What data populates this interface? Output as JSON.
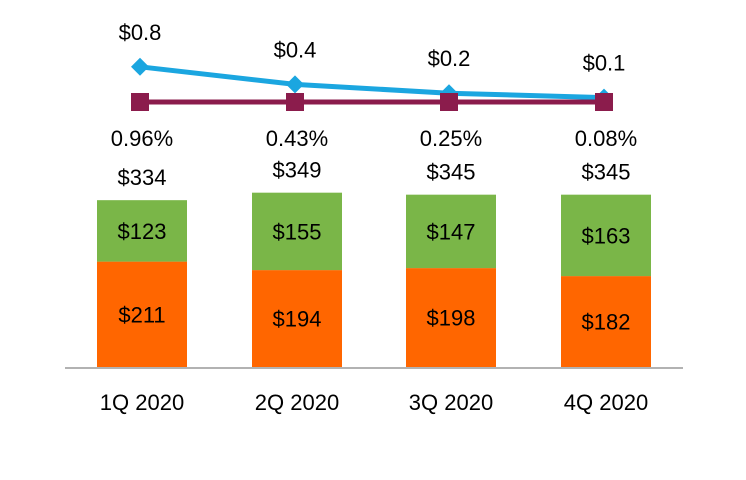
{
  "chart_data": {
    "type": "bar",
    "stacked": true,
    "categories": [
      "1Q 2020",
      "2Q 2020",
      "3Q 2020",
      "4Q 2020"
    ],
    "series": [
      {
        "values": [
          211,
          194,
          198,
          182
        ],
        "color": "#ff6600",
        "labels": [
          "$211",
          "$194",
          "$198",
          "$182"
        ]
      },
      {
        "values": [
          123,
          155,
          147,
          163
        ],
        "color": "#7ab648",
        "labels": [
          "$123",
          "$155",
          "$147",
          "$163"
        ]
      }
    ],
    "totals": {
      "values": [
        334,
        349,
        345,
        345
      ],
      "labels": [
        "$334",
        "$349",
        "$345",
        "$345"
      ]
    },
    "percentages": [
      "0.96%",
      "0.43%",
      "0.25%",
      "0.08%"
    ],
    "lines": [
      {
        "type": "line",
        "marker": "diamond",
        "color": "#1ba6e0",
        "values": [
          0.8,
          0.4,
          0.2,
          0.1
        ],
        "labels": [
          "$0.8",
          "$0.4",
          "$0.2",
          "$0.1"
        ]
      },
      {
        "type": "line",
        "marker": "square",
        "color": "#8b1c4c",
        "values": [
          0,
          0,
          0,
          0
        ]
      }
    ],
    "legend": "none",
    "grid": false
  }
}
